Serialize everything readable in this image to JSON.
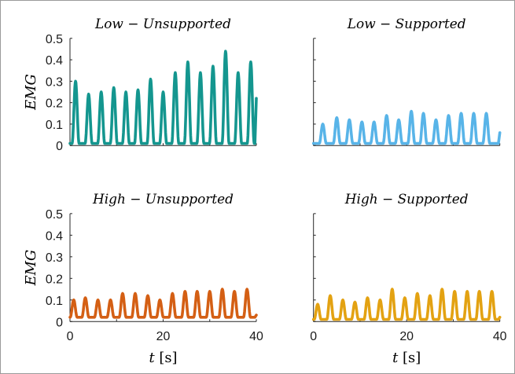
{
  "chart_data": [
    {
      "type": "line",
      "title": "Low − Unsupported",
      "ylabel": "EMG",
      "xlabel": "",
      "xlim": [
        0,
        40
      ],
      "ylim": [
        0,
        0.5
      ],
      "yticks": [
        "0",
        "0.1",
        "0.2",
        "0.3",
        "0.4",
        "0.5"
      ],
      "xticks": [],
      "color": "#14968f",
      "peaks": [
        {
          "x": 1.2,
          "y": 0.3
        },
        {
          "x": 4.0,
          "y": 0.24
        },
        {
          "x": 6.7,
          "y": 0.25
        },
        {
          "x": 9.4,
          "y": 0.27
        },
        {
          "x": 12.0,
          "y": 0.25
        },
        {
          "x": 14.6,
          "y": 0.26
        },
        {
          "x": 17.3,
          "y": 0.31
        },
        {
          "x": 20.0,
          "y": 0.25
        },
        {
          "x": 22.6,
          "y": 0.34
        },
        {
          "x": 25.3,
          "y": 0.39
        },
        {
          "x": 28.0,
          "y": 0.34
        },
        {
          "x": 30.7,
          "y": 0.37
        },
        {
          "x": 33.4,
          "y": 0.44
        },
        {
          "x": 36.1,
          "y": 0.34
        },
        {
          "x": 38.8,
          "y": 0.39
        }
      ],
      "trough": 0.01,
      "end_y": 0.22
    },
    {
      "type": "line",
      "title": "Low − Supported",
      "ylabel": "",
      "xlabel": "",
      "xlim": [
        0,
        40
      ],
      "ylim": [
        0,
        0.5
      ],
      "yticks": [],
      "xticks": [],
      "color": "#58b4e8",
      "peaks": [
        {
          "x": 2.0,
          "y": 0.1
        },
        {
          "x": 5.0,
          "y": 0.13
        },
        {
          "x": 7.7,
          "y": 0.12
        },
        {
          "x": 10.4,
          "y": 0.11
        },
        {
          "x": 13.0,
          "y": 0.11
        },
        {
          "x": 15.7,
          "y": 0.14
        },
        {
          "x": 18.3,
          "y": 0.12
        },
        {
          "x": 21.0,
          "y": 0.16
        },
        {
          "x": 23.6,
          "y": 0.15
        },
        {
          "x": 26.3,
          "y": 0.12
        },
        {
          "x": 29.0,
          "y": 0.14
        },
        {
          "x": 31.7,
          "y": 0.15
        },
        {
          "x": 34.4,
          "y": 0.15
        },
        {
          "x": 37.1,
          "y": 0.15
        }
      ],
      "trough": 0.01,
      "end_y": 0.06
    },
    {
      "type": "line",
      "title": "High − Unsupported",
      "ylabel": "EMG",
      "xlabel": "t [s]",
      "xlim": [
        0,
        40
      ],
      "ylim": [
        0,
        0.5
      ],
      "yticks": [
        "0",
        "0.1",
        "0.2",
        "0.3",
        "0.4",
        "0.5"
      ],
      "xticks": [
        "0",
        "20",
        "40"
      ],
      "color": "#d45f14",
      "peaks": [
        {
          "x": 0.8,
          "y": 0.1
        },
        {
          "x": 3.3,
          "y": 0.11
        },
        {
          "x": 6.0,
          "y": 0.1
        },
        {
          "x": 8.7,
          "y": 0.1
        },
        {
          "x": 11.3,
          "y": 0.13
        },
        {
          "x": 14.0,
          "y": 0.13
        },
        {
          "x": 16.7,
          "y": 0.12
        },
        {
          "x": 19.3,
          "y": 0.1
        },
        {
          "x": 22.0,
          "y": 0.13
        },
        {
          "x": 24.7,
          "y": 0.14
        },
        {
          "x": 27.3,
          "y": 0.14
        },
        {
          "x": 30.0,
          "y": 0.14
        },
        {
          "x": 32.7,
          "y": 0.15
        },
        {
          "x": 35.3,
          "y": 0.14
        },
        {
          "x": 38.0,
          "y": 0.15
        }
      ],
      "trough": 0.02,
      "end_y": 0.03
    },
    {
      "type": "line",
      "title": "High − Supported",
      "ylabel": "",
      "xlabel": "t [s]",
      "xlim": [
        0,
        40
      ],
      "ylim": [
        0,
        0.5
      ],
      "yticks": [],
      "xticks": [
        "0",
        "20",
        "40"
      ],
      "color": "#e3a212",
      "peaks": [
        {
          "x": 0.9,
          "y": 0.08
        },
        {
          "x": 3.6,
          "y": 0.12
        },
        {
          "x": 6.3,
          "y": 0.1
        },
        {
          "x": 8.9,
          "y": 0.09
        },
        {
          "x": 11.6,
          "y": 0.11
        },
        {
          "x": 14.3,
          "y": 0.1
        },
        {
          "x": 16.9,
          "y": 0.15
        },
        {
          "x": 19.6,
          "y": 0.11
        },
        {
          "x": 22.3,
          "y": 0.13
        },
        {
          "x": 25.0,
          "y": 0.12
        },
        {
          "x": 27.6,
          "y": 0.15
        },
        {
          "x": 30.3,
          "y": 0.14
        },
        {
          "x": 33.0,
          "y": 0.14
        },
        {
          "x": 35.6,
          "y": 0.14
        },
        {
          "x": 38.3,
          "y": 0.14
        }
      ],
      "trough": 0.01,
      "end_y": 0.02
    }
  ]
}
